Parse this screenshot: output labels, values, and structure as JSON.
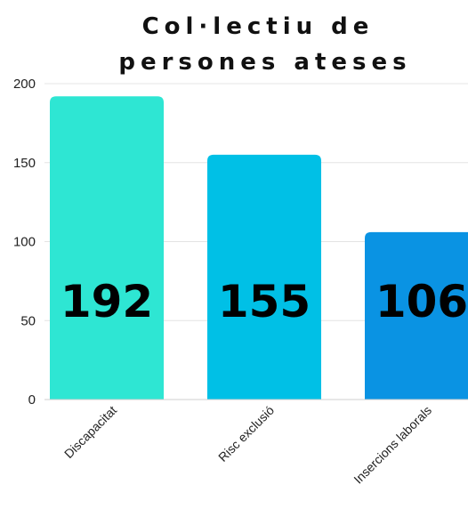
{
  "chart_data": {
    "type": "bar",
    "title_lines": [
      "Col·lectiu de",
      "persones ateses"
    ],
    "categories": [
      "Discapacitat",
      "Risc exclusió",
      "Insercions laborals"
    ],
    "values": [
      192,
      155,
      106
    ],
    "value_labels": [
      "192",
      "155",
      "106"
    ],
    "colors": [
      "#2ee6d3",
      "#00c0e6",
      "#0a93e3"
    ],
    "ylim": [
      0,
      200
    ],
    "yticks": [
      "0",
      "50",
      "100",
      "150",
      "200"
    ],
    "grid": true,
    "xlabel": "",
    "ylabel": ""
  }
}
